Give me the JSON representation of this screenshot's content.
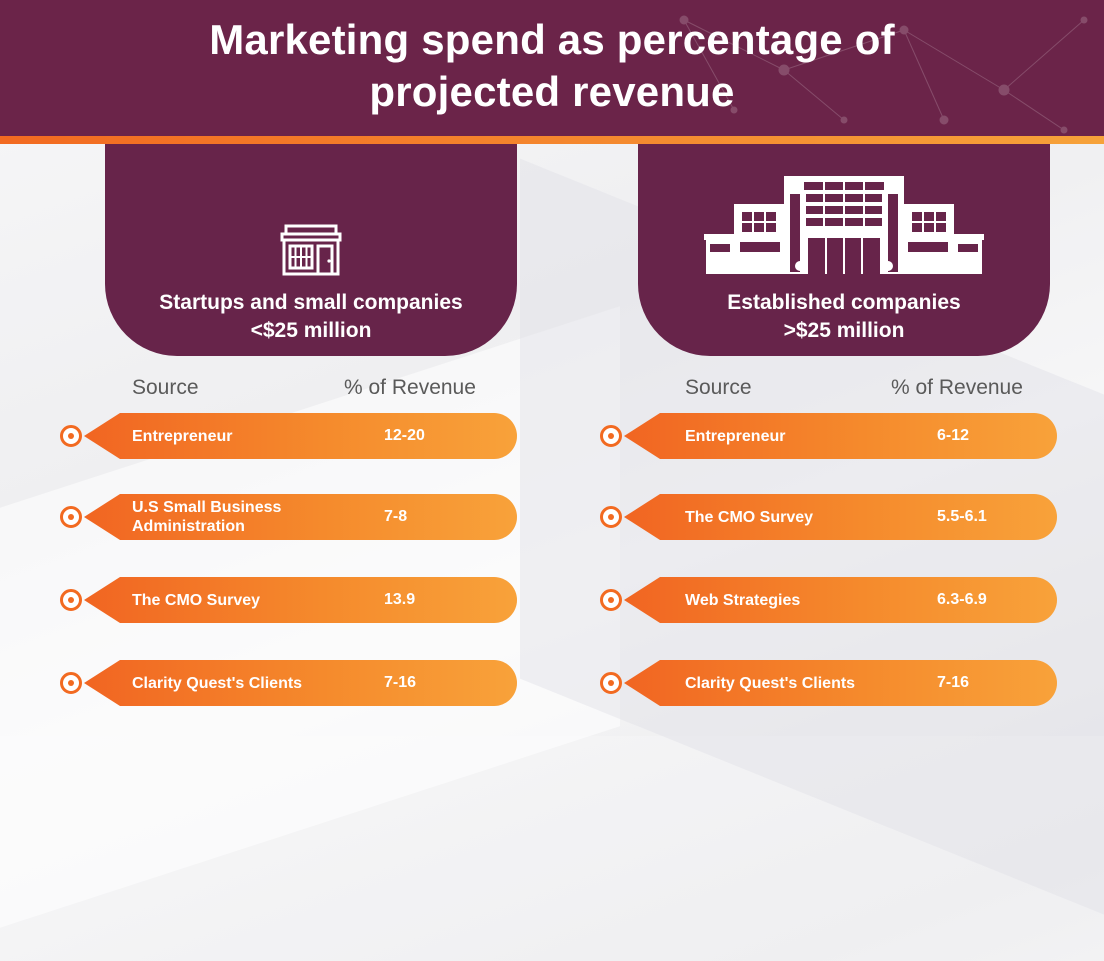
{
  "header": {
    "title_line1": "Marketing spend as percentage of",
    "title_line2": "projected revenue"
  },
  "colors": {
    "plum": "#6b2449",
    "orange": "#f26a21",
    "orange_light": "#f8a23a"
  },
  "left": {
    "icon": "storefront-icon",
    "label_line1": "Startups and small companies",
    "label_line2": "<$25 million",
    "col_source": "Source",
    "col_revenue": "% of Revenue",
    "rows": [
      {
        "source": "Entrepreneur",
        "value": "12-20"
      },
      {
        "source": "U.S Small Business Administration",
        "value": "7-8"
      },
      {
        "source": "The CMO Survey",
        "value": "13.9"
      },
      {
        "source": "Clarity Quest's Clients",
        "value": "7-16"
      }
    ]
  },
  "right": {
    "icon": "office-building-icon",
    "label_line1": "Established companies",
    "label_line2": ">$25 million",
    "col_source": "Source",
    "col_revenue": "% of Revenue",
    "rows": [
      {
        "source": "Entrepreneur",
        "value": "6-12"
      },
      {
        "source": "The CMO Survey",
        "value": "5.5-6.1"
      },
      {
        "source": "Web Strategies",
        "value": "6.3-6.9"
      },
      {
        "source": "Clarity Quest's Clients",
        "value": "7-16"
      }
    ]
  }
}
